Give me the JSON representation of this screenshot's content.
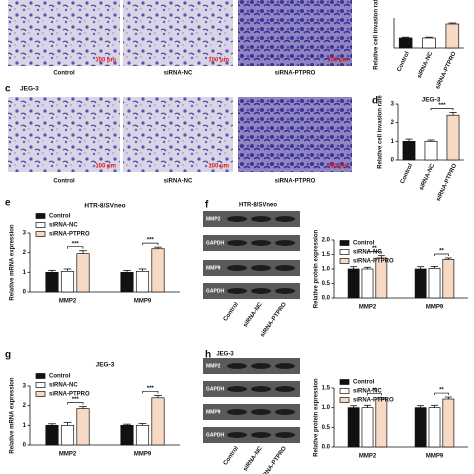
{
  "panel_labels": [
    "c",
    "d",
    "e",
    "f",
    "g",
    "h"
  ],
  "micrographs": [
    {
      "images": [
        {
          "label": "Control",
          "scale_bar": "100 μm"
        },
        {
          "label": "siRNA-NC",
          "scale_bar": "100 μm"
        },
        {
          "label": "siRNA-PTPRO",
          "scale_bar": "100 μm"
        }
      ]
    },
    {
      "title": "JEG-3",
      "images": [
        {
          "label": "Control",
          "scale_bar": "100 μm"
        },
        {
          "label": "siRNA-NC",
          "scale_bar": "100 μm"
        },
        {
          "label": "siRNA-PTPRO",
          "scale_bar": "100 μm"
        }
      ]
    }
  ],
  "blots": [
    {
      "title": "HTR-8/SVneo",
      "rows": [
        "MMP2",
        "GAPDH",
        "MMP9",
        "GAPDH"
      ],
      "lanes": [
        "Control",
        "siRNA-NC",
        "siRNA-PTPRO"
      ]
    },
    {
      "title": "JEG-3",
      "rows": [
        "MMP2",
        "GAPDH",
        "MMP9",
        "GAPDH"
      ],
      "lanes": [
        "Control",
        "siRNA-NC",
        "siRNA-PTPRO"
      ]
    }
  ],
  "chart_data": [
    {
      "type": "bar",
      "y_label": "Relative cell invasion rate",
      "categories": [
        "Control",
        "siRNA-NC",
        "siRNA-PTPRO"
      ],
      "values": [
        1.0,
        1.0,
        2.4
      ],
      "errors": [
        0.08,
        0.08,
        0.1
      ],
      "colors": [
        "#111111",
        "#ffffff",
        "#f8d9c4"
      ],
      "ylim": [
        0,
        3
      ],
      "rotate_x_labels": true
    },
    {
      "type": "bar",
      "title": "JEG-3",
      "y_label": "Relative cell invasion rate",
      "categories": [
        "Control",
        "siRNA-NC",
        "siRNA-PTPRO"
      ],
      "values": [
        1.0,
        1.0,
        2.4
      ],
      "errors": [
        0.12,
        0.07,
        0.15
      ],
      "colors": [
        "#111111",
        "#ffffff",
        "#f8d9c4"
      ],
      "ylim": [
        0,
        3
      ],
      "yticks": [
        0,
        1,
        2,
        3
      ],
      "significance": [
        "***"
      ],
      "rotate_x_labels": true
    },
    {
      "type": "grouped_bar",
      "title": "HTR-8/SVneo",
      "y_label": "Relative mRNA expression",
      "categories": [
        "MMP2",
        "MMP9"
      ],
      "series": [
        {
          "name": "Control",
          "color": "#111111",
          "values": [
            1.0,
            1.0
          ],
          "errors": [
            0.1,
            0.1
          ]
        },
        {
          "name": "siRNA-NC",
          "color": "#ffffff",
          "values": [
            1.05,
            1.05
          ],
          "errors": [
            0.12,
            0.12
          ]
        },
        {
          "name": "siRNA-PTPRO",
          "color": "#f8d9c4",
          "values": [
            1.95,
            2.2
          ],
          "errors": [
            0.15,
            0.08
          ]
        }
      ],
      "significance": [
        "***",
        "***"
      ],
      "ylim": [
        0,
        3
      ],
      "yticks": [
        0,
        1,
        2,
        3
      ]
    },
    {
      "type": "grouped_bar",
      "y_label": "Relative protein expression",
      "categories": [
        "MMP2",
        "MMP9"
      ],
      "series": [
        {
          "name": "Control",
          "color": "#111111",
          "values": [
            1.0,
            1.0
          ],
          "errors": [
            0.08,
            0.08
          ]
        },
        {
          "name": "siRNA-NC",
          "color": "#ffffff",
          "values": [
            1.0,
            1.02
          ],
          "errors": [
            0.06,
            0.07
          ]
        },
        {
          "name": "siRNA-PTPRO",
          "color": "#f8d9c4",
          "values": [
            1.38,
            1.33
          ],
          "errors": [
            0.08,
            0.05
          ]
        }
      ],
      "significance": [
        "**",
        "**"
      ],
      "ylim": [
        0,
        2
      ],
      "yticks": [
        {
          "value": 0,
          "label": "0.0"
        },
        0.5,
        {
          "value": 1,
          "label": "1.0"
        },
        1.5,
        {
          "value": 2,
          "label": "2.0"
        }
      ]
    },
    {
      "type": "grouped_bar",
      "title": "JEG-3",
      "y_label": "Relative mRNA expression",
      "categories": [
        "MMP2",
        "MMP9"
      ],
      "series": [
        {
          "name": "Control",
          "color": "#111111",
          "values": [
            1.0,
            1.0
          ],
          "errors": [
            0.08,
            0.06
          ]
        },
        {
          "name": "siRNA-NC",
          "color": "#ffffff",
          "values": [
            1.0,
            1.0
          ],
          "errors": [
            0.15,
            0.1
          ]
        },
        {
          "name": "siRNA-PTPRO",
          "color": "#f8d9c4",
          "values": [
            1.85,
            2.4
          ],
          "errors": [
            0.1,
            0.12
          ]
        }
      ],
      "significance": [
        "***",
        "***"
      ],
      "ylim": [
        0,
        3
      ],
      "yticks": [
        0,
        1,
        2,
        3
      ]
    },
    {
      "type": "grouped_bar",
      "y_label": "Relative protein expression",
      "categories": [
        "MMP2",
        "MMP9"
      ],
      "series": [
        {
          "name": "Control",
          "color": "#111111",
          "values": [
            1.0,
            1.0
          ],
          "errors": [
            0.05,
            0.05
          ]
        },
        {
          "name": "siRNA-NC",
          "color": "#ffffff",
          "values": [
            1.0,
            1.0
          ],
          "errors": [
            0.06,
            0.06
          ]
        },
        {
          "name": "siRNA-PTPRO",
          "color": "#f8d9c4",
          "values": [
            1.22,
            1.22
          ],
          "errors": [
            0.04,
            0.05
          ]
        }
      ],
      "significance": [
        "**",
        "**"
      ],
      "ylim": [
        0,
        1.5
      ],
      "yticks": [
        {
          "value": 0,
          "label": "0.0"
        },
        0.5,
        {
          "value": 1,
          "label": "1.0"
        },
        1.5
      ]
    }
  ]
}
